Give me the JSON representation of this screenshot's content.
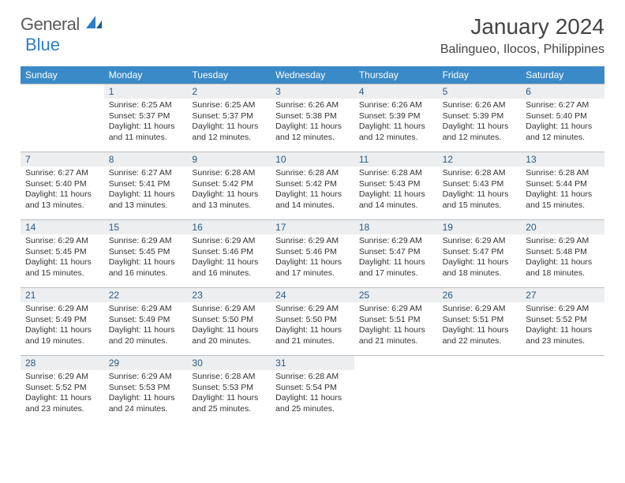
{
  "logo": {
    "general": "General",
    "blue": "Blue"
  },
  "title": "January 2024",
  "location": "Balingueo, Ilocos, Philippines",
  "colors": {
    "header_bg": "#3a8ac7",
    "daynum_bg": "#eceef0",
    "daynum_color": "#2a5b85",
    "border": "#bdbdbd",
    "logo_blue": "#2d7fc4",
    "logo_gray": "#5a5a5a"
  },
  "daysOfWeek": [
    "Sunday",
    "Monday",
    "Tuesday",
    "Wednesday",
    "Thursday",
    "Friday",
    "Saturday"
  ],
  "startOffset": 1,
  "days": [
    {
      "n": "1",
      "sr": "6:25 AM",
      "ss": "5:37 PM",
      "dl": "11 hours and 11 minutes."
    },
    {
      "n": "2",
      "sr": "6:25 AM",
      "ss": "5:37 PM",
      "dl": "11 hours and 12 minutes."
    },
    {
      "n": "3",
      "sr": "6:26 AM",
      "ss": "5:38 PM",
      "dl": "11 hours and 12 minutes."
    },
    {
      "n": "4",
      "sr": "6:26 AM",
      "ss": "5:39 PM",
      "dl": "11 hours and 12 minutes."
    },
    {
      "n": "5",
      "sr": "6:26 AM",
      "ss": "5:39 PM",
      "dl": "11 hours and 12 minutes."
    },
    {
      "n": "6",
      "sr": "6:27 AM",
      "ss": "5:40 PM",
      "dl": "11 hours and 12 minutes."
    },
    {
      "n": "7",
      "sr": "6:27 AM",
      "ss": "5:40 PM",
      "dl": "11 hours and 13 minutes."
    },
    {
      "n": "8",
      "sr": "6:27 AM",
      "ss": "5:41 PM",
      "dl": "11 hours and 13 minutes."
    },
    {
      "n": "9",
      "sr": "6:28 AM",
      "ss": "5:42 PM",
      "dl": "11 hours and 13 minutes."
    },
    {
      "n": "10",
      "sr": "6:28 AM",
      "ss": "5:42 PM",
      "dl": "11 hours and 14 minutes."
    },
    {
      "n": "11",
      "sr": "6:28 AM",
      "ss": "5:43 PM",
      "dl": "11 hours and 14 minutes."
    },
    {
      "n": "12",
      "sr": "6:28 AM",
      "ss": "5:43 PM",
      "dl": "11 hours and 15 minutes."
    },
    {
      "n": "13",
      "sr": "6:28 AM",
      "ss": "5:44 PM",
      "dl": "11 hours and 15 minutes."
    },
    {
      "n": "14",
      "sr": "6:29 AM",
      "ss": "5:45 PM",
      "dl": "11 hours and 15 minutes."
    },
    {
      "n": "15",
      "sr": "6:29 AM",
      "ss": "5:45 PM",
      "dl": "11 hours and 16 minutes."
    },
    {
      "n": "16",
      "sr": "6:29 AM",
      "ss": "5:46 PM",
      "dl": "11 hours and 16 minutes."
    },
    {
      "n": "17",
      "sr": "6:29 AM",
      "ss": "5:46 PM",
      "dl": "11 hours and 17 minutes."
    },
    {
      "n": "18",
      "sr": "6:29 AM",
      "ss": "5:47 PM",
      "dl": "11 hours and 17 minutes."
    },
    {
      "n": "19",
      "sr": "6:29 AM",
      "ss": "5:47 PM",
      "dl": "11 hours and 18 minutes."
    },
    {
      "n": "20",
      "sr": "6:29 AM",
      "ss": "5:48 PM",
      "dl": "11 hours and 18 minutes."
    },
    {
      "n": "21",
      "sr": "6:29 AM",
      "ss": "5:49 PM",
      "dl": "11 hours and 19 minutes."
    },
    {
      "n": "22",
      "sr": "6:29 AM",
      "ss": "5:49 PM",
      "dl": "11 hours and 20 minutes."
    },
    {
      "n": "23",
      "sr": "6:29 AM",
      "ss": "5:50 PM",
      "dl": "11 hours and 20 minutes."
    },
    {
      "n": "24",
      "sr": "6:29 AM",
      "ss": "5:50 PM",
      "dl": "11 hours and 21 minutes."
    },
    {
      "n": "25",
      "sr": "6:29 AM",
      "ss": "5:51 PM",
      "dl": "11 hours and 21 minutes."
    },
    {
      "n": "26",
      "sr": "6:29 AM",
      "ss": "5:51 PM",
      "dl": "11 hours and 22 minutes."
    },
    {
      "n": "27",
      "sr": "6:29 AM",
      "ss": "5:52 PM",
      "dl": "11 hours and 23 minutes."
    },
    {
      "n": "28",
      "sr": "6:29 AM",
      "ss": "5:52 PM",
      "dl": "11 hours and 23 minutes."
    },
    {
      "n": "29",
      "sr": "6:29 AM",
      "ss": "5:53 PM",
      "dl": "11 hours and 24 minutes."
    },
    {
      "n": "30",
      "sr": "6:28 AM",
      "ss": "5:53 PM",
      "dl": "11 hours and 25 minutes."
    },
    {
      "n": "31",
      "sr": "6:28 AM",
      "ss": "5:54 PM",
      "dl": "11 hours and 25 minutes."
    }
  ],
  "labels": {
    "sunrise": "Sunrise:",
    "sunset": "Sunset:",
    "daylight": "Daylight:"
  }
}
